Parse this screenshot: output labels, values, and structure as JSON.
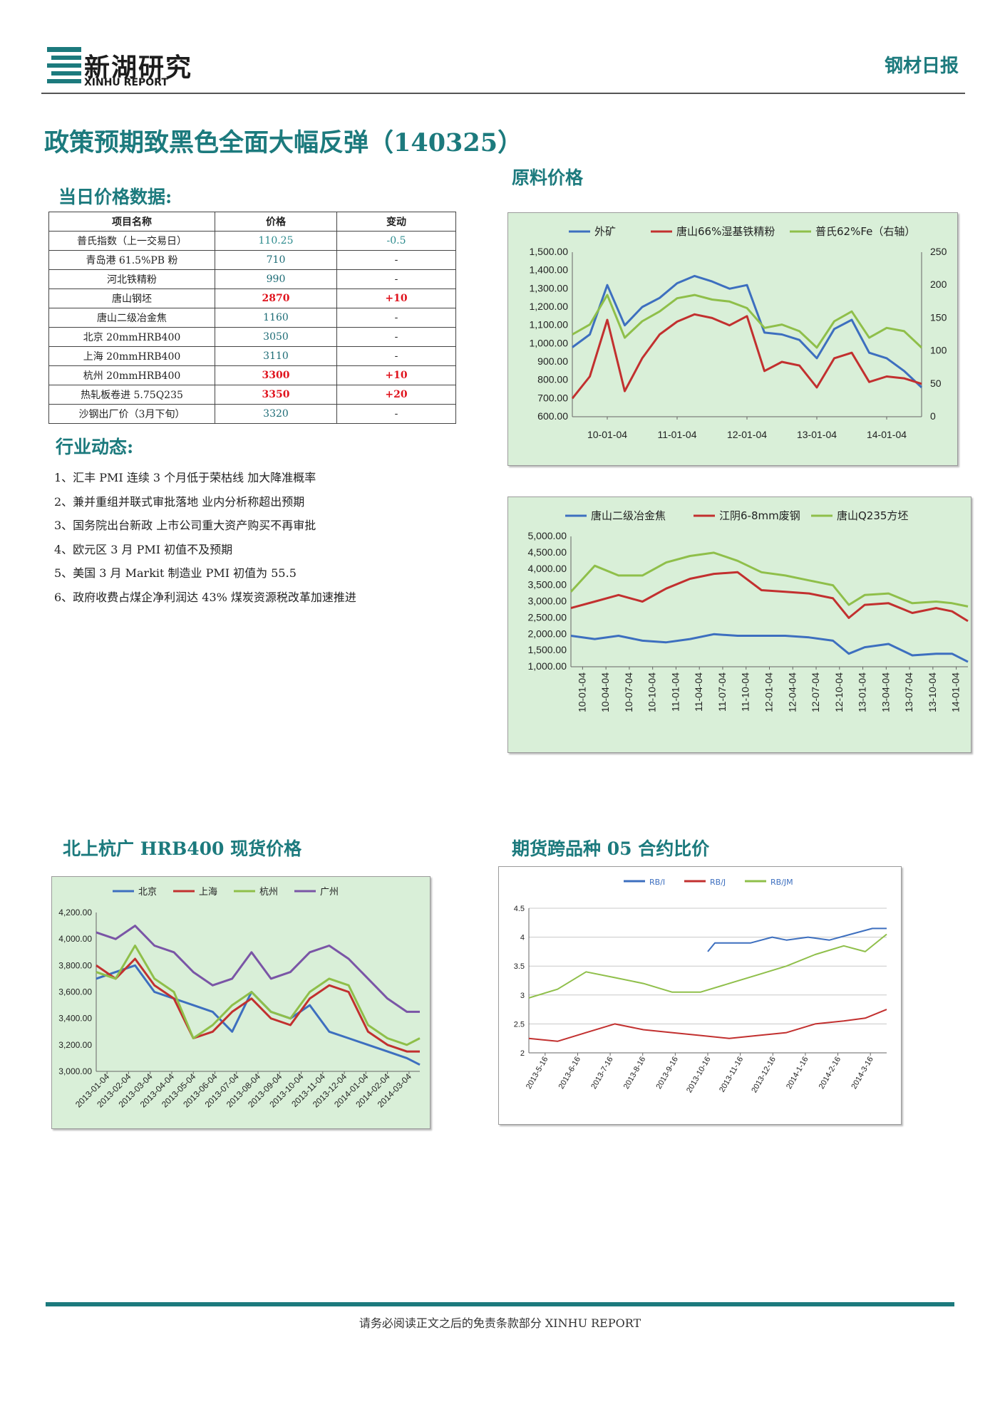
{
  "header": {
    "logo_cn": "新湖研究",
    "logo_en": "XINHU REPORT",
    "report_name": "钢材日报",
    "title": "政策预期致黑色全面大幅反弹（140325）"
  },
  "sections": {
    "daily_prices": "当日价格数据:",
    "industry": "行业动态:",
    "raw_materials": "原料价格",
    "rebar": "北上杭广 HRB400 现货价格",
    "futures": "期货跨品种 05 合约比价"
  },
  "price_table": {
    "headers": [
      "项目名称",
      "价格",
      "变动"
    ],
    "rows": [
      {
        "name": "普氏指数（上一交易日）",
        "price": "110.25",
        "change": "-0.5"
      },
      {
        "name": "青岛港 61.5%PB 粉",
        "price": "710",
        "change": "-"
      },
      {
        "name": "河北铁精粉",
        "price": "990",
        "change": "-"
      },
      {
        "name": "唐山钢坯",
        "price": "2870",
        "change": "+10"
      },
      {
        "name": "唐山二级冶金焦",
        "price": "1160",
        "change": "-"
      },
      {
        "name": "北京 20mmHRB400",
        "price": "3050",
        "change": "-"
      },
      {
        "name": "上海 20mmHRB400",
        "price": "3110",
        "change": "-"
      },
      {
        "name": "杭州 20mmHRB400",
        "price": "3300",
        "change": "+10"
      },
      {
        "name": "热轧板卷进 5.75Q235",
        "price": "3350",
        "change": "+20"
      },
      {
        "name": "沙钢出厂价（3月下旬）",
        "price": "3320",
        "change": "-"
      }
    ]
  },
  "news": [
    "1、汇丰 PMI 连续 3 个月低于荣枯线 加大降准概率",
    "2、兼并重组并联式审批落地 业内分析称超出预期",
    "3、国务院出台新政 上市公司重大资产购买不再审批",
    "4、欧元区 3 月 PMI 初值不及预期",
    "5、美国 3 月 Markit 制造业 PMI 初值为 55.5",
    "6、政府收费占煤企净利润达 43% 煤炭资源税改革加速推进"
  ],
  "footer": "请务必阅读正文之后的免责条款部分 XINHU REPORT",
  "colors": {
    "accent": "#1c7a7d",
    "red": "#e0141e",
    "blue": "#3d6fbf",
    "red_line": "#c2302f",
    "green": "#8fbf4a",
    "purple": "#7a55a6"
  },
  "chart_data": [
    {
      "type": "line",
      "legend": [
        "外矿",
        "唐山66%湿基铁精粉",
        "普氏62%Fe（右轴）"
      ],
      "categories": [
        "10-01-04",
        "11-01-04",
        "12-01-04",
        "13-01-04",
        "14-01-04"
      ],
      "ylim": [
        600,
        1500
      ],
      "yticks": [
        "1,500.00",
        "1,400.00",
        "1,300.00",
        "1,200.00",
        "1,100.00",
        "1,000.00",
        "900.00",
        "800.00",
        "700.00",
        "600.00"
      ],
      "y2lim": [
        0,
        250
      ],
      "y2ticks": [
        "250",
        "200",
        "150",
        "100",
        "50",
        "0"
      ],
      "series": [
        {
          "name": "外矿",
          "color": "#3d6fbf",
          "axis": "left",
          "x": [
            0,
            0.05,
            0.1,
            0.15,
            0.2,
            0.25,
            0.3,
            0.35,
            0.4,
            0.45,
            0.5,
            0.55,
            0.6,
            0.65,
            0.7,
            0.75,
            0.8,
            0.85,
            0.9,
            0.95,
            1.0
          ],
          "values": [
            980,
            1050,
            1320,
            1100,
            1200,
            1250,
            1330,
            1370,
            1340,
            1300,
            1320,
            1060,
            1050,
            1020,
            920,
            1080,
            1130,
            950,
            920,
            850,
            760
          ]
        },
        {
          "name": "唐山66%湿基铁精粉",
          "color": "#c2302f",
          "axis": "left",
          "x": [
            0,
            0.05,
            0.1,
            0.15,
            0.2,
            0.25,
            0.3,
            0.35,
            0.4,
            0.45,
            0.5,
            0.55,
            0.6,
            0.65,
            0.7,
            0.75,
            0.8,
            0.85,
            0.9,
            0.95,
            1.0
          ],
          "values": [
            700,
            820,
            1130,
            740,
            920,
            1050,
            1120,
            1160,
            1140,
            1100,
            1150,
            850,
            900,
            880,
            760,
            920,
            950,
            790,
            820,
            810,
            780
          ]
        },
        {
          "name": "普氏62%Fe（右轴）",
          "color": "#8fbf4a",
          "axis": "right",
          "x": [
            0,
            0.05,
            0.1,
            0.15,
            0.2,
            0.25,
            0.3,
            0.35,
            0.4,
            0.45,
            0.5,
            0.55,
            0.6,
            0.65,
            0.7,
            0.75,
            0.8,
            0.85,
            0.9,
            0.95,
            1.0
          ],
          "values": [
            125,
            140,
            185,
            120,
            145,
            160,
            180,
            185,
            178,
            175,
            165,
            135,
            140,
            130,
            105,
            145,
            160,
            120,
            135,
            130,
            105
          ]
        }
      ]
    },
    {
      "type": "line",
      "legend": [
        "唐山二级冶金焦",
        "江阴6-8mm废钢",
        "唐山Q235方坯"
      ],
      "categories": [
        "10-01-04",
        "10-04-04",
        "10-07-04",
        "10-10-04",
        "11-01-04",
        "11-04-04",
        "11-07-04",
        "11-10-04",
        "12-01-04",
        "12-04-04",
        "12-07-04",
        "12-10-04",
        "13-01-04",
        "13-04-04",
        "13-07-04",
        "13-10-04",
        "14-01-04"
      ],
      "ylim": [
        1000,
        5000
      ],
      "yticks": [
        "5,000.00",
        "4,500.00",
        "4,000.00",
        "3,500.00",
        "3,000.00",
        "2,500.00",
        "2,000.00",
        "1,500.00",
        "1,000.00"
      ],
      "series": [
        {
          "name": "唐山二级冶金焦",
          "color": "#3d6fbf",
          "x": [
            0,
            0.06,
            0.12,
            0.18,
            0.24,
            0.3,
            0.36,
            0.42,
            0.48,
            0.54,
            0.6,
            0.66,
            0.7,
            0.74,
            0.8,
            0.86,
            0.92,
            0.96,
            1.0
          ],
          "values": [
            1950,
            1850,
            1950,
            1800,
            1750,
            1850,
            2000,
            1950,
            1950,
            1950,
            1900,
            1800,
            1400,
            1600,
            1700,
            1350,
            1400,
            1400,
            1150
          ]
        },
        {
          "name": "江阴6-8mm废钢",
          "color": "#c2302f",
          "x": [
            0,
            0.06,
            0.12,
            0.18,
            0.24,
            0.3,
            0.36,
            0.42,
            0.48,
            0.54,
            0.6,
            0.66,
            0.7,
            0.74,
            0.8,
            0.86,
            0.92,
            0.96,
            1.0
          ],
          "values": [
            2800,
            3000,
            3200,
            3000,
            3400,
            3700,
            3850,
            3900,
            3350,
            3300,
            3250,
            3100,
            2500,
            2900,
            2950,
            2650,
            2800,
            2700,
            2400
          ]
        },
        {
          "name": "唐山Q235方坯",
          "color": "#8fbf4a",
          "x": [
            0,
            0.06,
            0.12,
            0.18,
            0.24,
            0.3,
            0.36,
            0.42,
            0.48,
            0.54,
            0.6,
            0.66,
            0.7,
            0.74,
            0.8,
            0.86,
            0.92,
            0.96,
            1.0
          ],
          "values": [
            3300,
            4100,
            3800,
            3800,
            4200,
            4400,
            4500,
            4250,
            3900,
            3800,
            3650,
            3500,
            2900,
            3200,
            3250,
            2950,
            3000,
            2950,
            2850
          ]
        }
      ]
    },
    {
      "type": "line",
      "legend": [
        "北京",
        "上海",
        "杭州",
        "广州"
      ],
      "categories": [
        "2013-01-04",
        "2013-02-04",
        "2013-03-04",
        "2013-04-04",
        "2013-05-04",
        "2013-06-04",
        "2013-07-04",
        "2013-08-04",
        "2013-09-04",
        "2013-10-04",
        "2013-11-04",
        "2013-12-04",
        "2014-01-04",
        "2014-02-04",
        "2014-03-04"
      ],
      "ylim": [
        3000,
        4200
      ],
      "yticks": [
        "4,200.00",
        "4,000.00",
        "3,800.00",
        "3,600.00",
        "3,400.00",
        "3,200.00",
        "3,000.00"
      ],
      "series": [
        {
          "name": "北京",
          "color": "#3d6fbf",
          "x": [
            0,
            0.06,
            0.12,
            0.18,
            0.24,
            0.3,
            0.36,
            0.42,
            0.48,
            0.54,
            0.6,
            0.66,
            0.72,
            0.78,
            0.84,
            0.9,
            0.96,
            1.0
          ],
          "values": [
            3700,
            3750,
            3800,
            3600,
            3550,
            3500,
            3450,
            3300,
            3600,
            3450,
            3400,
            3500,
            3300,
            3250,
            3200,
            3150,
            3100,
            3050
          ]
        },
        {
          "name": "上海",
          "color": "#c2302f",
          "x": [
            0,
            0.06,
            0.12,
            0.18,
            0.24,
            0.3,
            0.36,
            0.42,
            0.48,
            0.54,
            0.6,
            0.66,
            0.72,
            0.78,
            0.84,
            0.9,
            0.96,
            1.0
          ],
          "values": [
            3800,
            3700,
            3850,
            3650,
            3550,
            3250,
            3300,
            3450,
            3550,
            3400,
            3350,
            3550,
            3650,
            3600,
            3300,
            3200,
            3150,
            3150
          ]
        },
        {
          "name": "杭州",
          "color": "#8fbf4a",
          "x": [
            0,
            0.06,
            0.12,
            0.18,
            0.24,
            0.3,
            0.36,
            0.42,
            0.48,
            0.54,
            0.6,
            0.66,
            0.72,
            0.78,
            0.84,
            0.9,
            0.96,
            1.0
          ],
          "values": [
            3750,
            3700,
            3950,
            3700,
            3600,
            3250,
            3350,
            3500,
            3600,
            3450,
            3400,
            3600,
            3700,
            3650,
            3350,
            3250,
            3200,
            3250
          ]
        },
        {
          "name": "广州",
          "color": "#7a55a6",
          "x": [
            0,
            0.06,
            0.12,
            0.18,
            0.24,
            0.3,
            0.36,
            0.42,
            0.48,
            0.54,
            0.6,
            0.66,
            0.72,
            0.78,
            0.84,
            0.9,
            0.96,
            1.0
          ],
          "values": [
            4050,
            4000,
            4100,
            3950,
            3900,
            3750,
            3650,
            3700,
            3900,
            3700,
            3750,
            3900,
            3950,
            3850,
            3700,
            3550,
            3450,
            3450
          ]
        }
      ]
    },
    {
      "type": "line",
      "legend": [
        "RB/I",
        "RB/J",
        "RB/JM"
      ],
      "categories": [
        "2013-5-16",
        "2013-6-16",
        "2013-7-16",
        "2013-8-16",
        "2013-9-16",
        "2013-10-16",
        "2013-11-16",
        "2013-12-16",
        "2014-1-16",
        "2014-2-16",
        "2014-3-16"
      ],
      "ylim": [
        2,
        4.5
      ],
      "yticks": [
        "4.5",
        "4",
        "3.5",
        "3",
        "2.5",
        "2"
      ],
      "series": [
        {
          "name": "RB/I",
          "color": "#3d6fbf",
          "x": [
            0.5,
            0.52,
            0.56,
            0.62,
            0.68,
            0.72,
            0.78,
            0.84,
            0.9,
            0.96,
            1.0
          ],
          "values": [
            3.75,
            3.9,
            3.9,
            3.9,
            4.0,
            3.95,
            4.0,
            3.95,
            4.05,
            4.15,
            4.15
          ]
        },
        {
          "name": "RB/J",
          "color": "#c2302f",
          "x": [
            0,
            0.08,
            0.16,
            0.24,
            0.32,
            0.4,
            0.48,
            0.56,
            0.64,
            0.72,
            0.8,
            0.88,
            0.94,
            1.0
          ],
          "values": [
            2.25,
            2.2,
            2.35,
            2.5,
            2.4,
            2.35,
            2.3,
            2.25,
            2.3,
            2.35,
            2.5,
            2.55,
            2.6,
            2.75
          ]
        },
        {
          "name": "RB/JM",
          "color": "#8fbf4a",
          "x": [
            0,
            0.08,
            0.16,
            0.24,
            0.32,
            0.4,
            0.48,
            0.56,
            0.64,
            0.72,
            0.8,
            0.88,
            0.94,
            1.0
          ],
          "values": [
            2.95,
            3.1,
            3.4,
            3.3,
            3.2,
            3.05,
            3.05,
            3.2,
            3.35,
            3.5,
            3.7,
            3.85,
            3.75,
            4.05
          ]
        }
      ]
    }
  ]
}
